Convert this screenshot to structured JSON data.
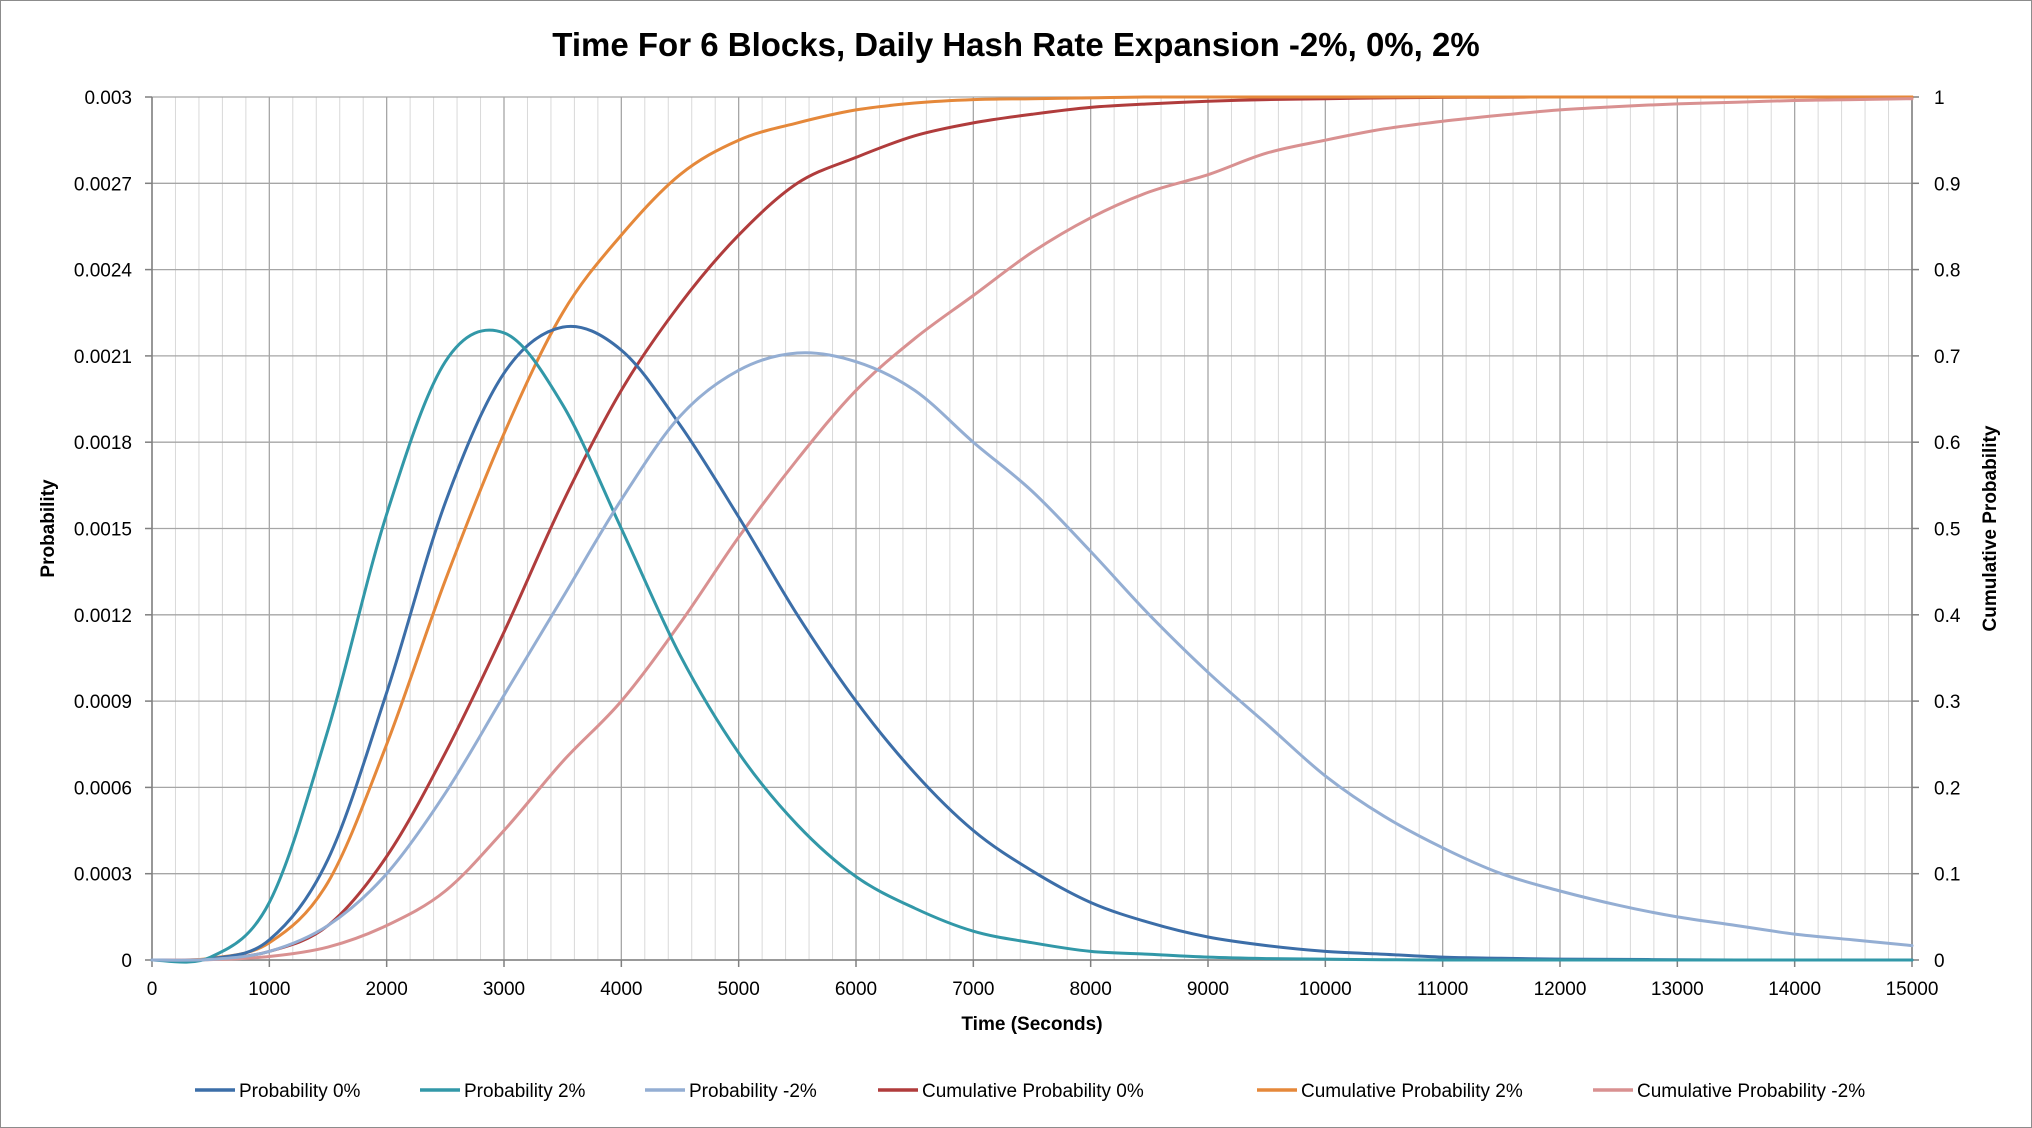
{
  "chart_data": {
    "type": "line",
    "title": "Time For 6 Blocks, Daily Hash Rate Expansion -2%, 0%, 2%",
    "xlabel": "Time (Seconds)",
    "ylabel": "Probability",
    "y2label": "Cumulative Probability",
    "xlim": [
      0,
      15000
    ],
    "ylim": [
      0,
      0.003
    ],
    "y2lim": [
      0,
      1
    ],
    "x_ticks": [
      "0",
      "1000",
      "2000",
      "3000",
      "4000",
      "5000",
      "6000",
      "7000",
      "8000",
      "9000",
      "10000",
      "11000",
      "12000",
      "13000",
      "14000",
      "15000"
    ],
    "y_ticks": [
      "0",
      "0.0003",
      "0.0006",
      "0.0009",
      "0.0012",
      "0.0015",
      "0.0018",
      "0.0021",
      "0.0024",
      "0.0027",
      "0.003"
    ],
    "y2_ticks": [
      "0",
      "0.1",
      "0.2",
      "0.3",
      "0.4",
      "0.5",
      "0.6",
      "0.7",
      "0.8",
      "0.9",
      "1"
    ],
    "grid": true,
    "legend_position": "bottom",
    "x": [
      0,
      500,
      1000,
      1500,
      2000,
      2500,
      3000,
      3500,
      4000,
      4500,
      5000,
      5500,
      6000,
      6500,
      7000,
      7500,
      8000,
      8500,
      9000,
      9500,
      10000,
      10500,
      11000,
      11500,
      12000,
      12500,
      13000,
      13500,
      14000,
      14500,
      15000
    ],
    "series": [
      {
        "name": "Probability 0%",
        "axis": "left",
        "color": "#3c6ea8",
        "values": [
          0,
          4e-06,
          7e-05,
          0.00035,
          0.00093,
          0.00159,
          0.00204,
          0.0022,
          0.00212,
          0.00186,
          0.00154,
          0.0012,
          0.0009,
          0.00065,
          0.00045,
          0.00031,
          0.0002,
          0.00013,
          8e-05,
          5e-05,
          3e-05,
          2e-05,
          1e-05,
          6e-06,
          3e-06,
          2e-06,
          1e-06,
          0,
          0,
          0,
          0
        ]
      },
      {
        "name": "Probability 2%",
        "axis": "left",
        "color": "#3298a8",
        "values": [
          0,
          1e-05,
          0.0002,
          0.0008,
          0.00155,
          0.00208,
          0.00218,
          0.00193,
          0.0015,
          0.00106,
          0.00072,
          0.00047,
          0.00029,
          0.00018,
          0.0001,
          6e-05,
          3e-05,
          2e-05,
          1e-05,
          5e-06,
          3e-06,
          1e-06,
          0,
          0,
          0,
          0,
          0,
          0,
          0,
          0,
          0
        ]
      },
      {
        "name": "Probability -2%",
        "axis": "left",
        "color": "#94aed3",
        "values": [
          0,
          2e-06,
          3e-05,
          0.00012,
          0.0003,
          0.00058,
          0.00092,
          0.00126,
          0.0016,
          0.00189,
          0.00205,
          0.00211,
          0.00208,
          0.00198,
          0.0018,
          0.00163,
          0.00142,
          0.0012,
          0.001,
          0.00082,
          0.00064,
          0.0005,
          0.00039,
          0.0003,
          0.00024,
          0.00019,
          0.00015,
          0.00012,
          9e-05,
          7e-05,
          5e-05
        ]
      },
      {
        "name": "Cumulative Probability 0%",
        "axis": "right",
        "color": "#b03c3c",
        "values": [
          0,
          0.001,
          0.01,
          0.04,
          0.12,
          0.24,
          0.38,
          0.53,
          0.66,
          0.76,
          0.84,
          0.9,
          0.93,
          0.955,
          0.97,
          0.98,
          0.988,
          0.992,
          0.995,
          0.997,
          0.998,
          0.999,
          0.9995,
          0.9998,
          1,
          1,
          1,
          1,
          1,
          1,
          1
        ]
      },
      {
        "name": "Cumulative Probability 2%",
        "axis": "right",
        "color": "#e5883a",
        "values": [
          0,
          0.002,
          0.02,
          0.09,
          0.25,
          0.44,
          0.61,
          0.75,
          0.84,
          0.91,
          0.95,
          0.97,
          0.985,
          0.993,
          0.997,
          0.998,
          0.999,
          1,
          1,
          1,
          1,
          1,
          1,
          1,
          1,
          1,
          1,
          1,
          1,
          1,
          1
        ]
      },
      {
        "name": "Cumulative Probability -2%",
        "axis": "right",
        "color": "#d99191",
        "values": [
          0,
          0.0005,
          0.004,
          0.015,
          0.04,
          0.08,
          0.15,
          0.23,
          0.3,
          0.39,
          0.49,
          0.58,
          0.66,
          0.72,
          0.77,
          0.82,
          0.86,
          0.89,
          0.91,
          0.935,
          0.95,
          0.963,
          0.972,
          0.979,
          0.985,
          0.989,
          0.992,
          0.994,
          0.996,
          0.997,
          0.998
        ]
      }
    ]
  }
}
